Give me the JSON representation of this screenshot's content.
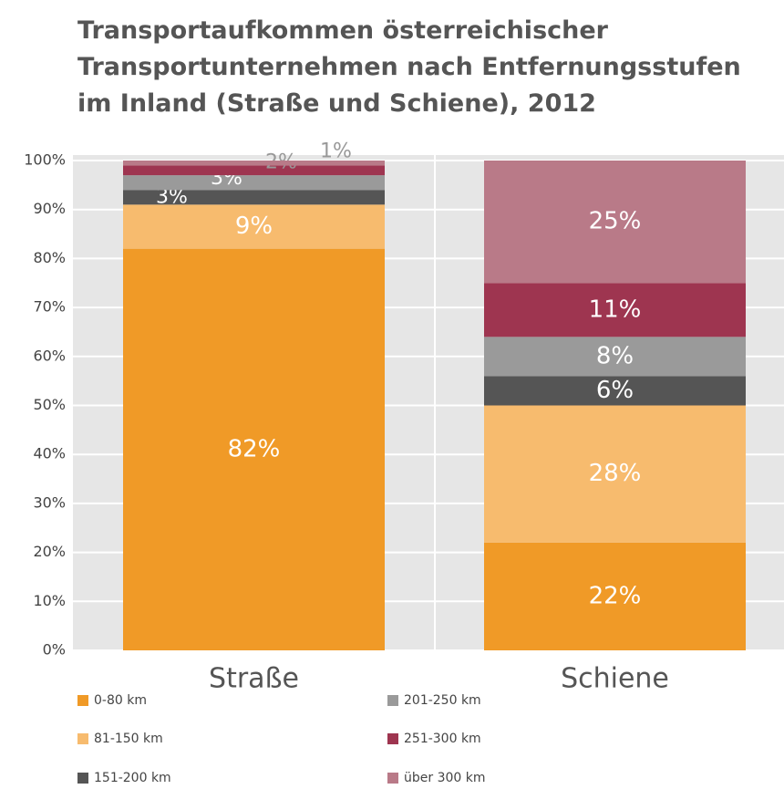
{
  "chart_data": {
    "type": "stacked_bar",
    "title": "Transportaufkommen österreichischer Transportunternehmen nach Entfernungsstufen im Inland (Straße und Schiene), 2012",
    "categories": [
      "Straße",
      "Schiene"
    ],
    "series": [
      {
        "name": "0-80 km",
        "color": "#f09a27",
        "values": [
          82,
          22
        ],
        "value_labels": [
          "82%",
          "22%"
        ]
      },
      {
        "name": "81-150 km",
        "color": "#f7bb6e",
        "values": [
          9,
          28
        ],
        "value_labels": [
          "9%",
          "28%"
        ]
      },
      {
        "name": "151-200 km",
        "color": "#555555",
        "values": [
          3,
          6
        ],
        "value_labels": [
          "3%",
          "6%"
        ]
      },
      {
        "name": "201-250 km",
        "color": "#9a9a9a",
        "values": [
          3,
          8
        ],
        "value_labels": [
          "3%",
          "8%"
        ]
      },
      {
        "name": "251-300 km",
        "color": "#9e3550",
        "values": [
          2,
          11
        ],
        "value_labels": [
          "2%",
          "11%"
        ]
      },
      {
        "name": "über 300 km",
        "color": "#b97a88",
        "values": [
          1,
          25
        ],
        "value_labels": [
          "1%",
          "25%"
        ]
      }
    ],
    "ylim": [
      0,
      100
    ],
    "yticks": [
      {
        "value": 0,
        "label": "0%"
      },
      {
        "value": 10,
        "label": "10%"
      },
      {
        "value": 20,
        "label": "20%"
      },
      {
        "value": 30,
        "label": "30%"
      },
      {
        "value": 40,
        "label": "40%"
      },
      {
        "value": 50,
        "label": "50%"
      },
      {
        "value": 60,
        "label": "60%"
      },
      {
        "value": 70,
        "label": "70%"
      },
      {
        "value": 80,
        "label": "80%"
      },
      {
        "value": 90,
        "label": "90%"
      },
      {
        "value": 100,
        "label": "100%"
      }
    ],
    "grid": true
  }
}
